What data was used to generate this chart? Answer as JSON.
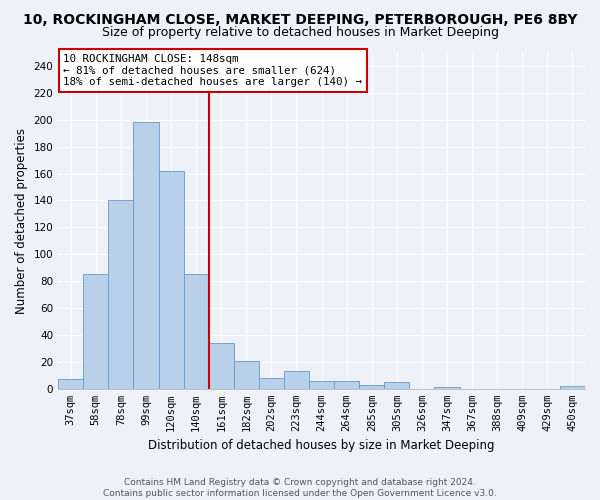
{
  "title": "10, ROCKINGHAM CLOSE, MARKET DEEPING, PETERBOROUGH, PE6 8BY",
  "subtitle": "Size of property relative to detached houses in Market Deeping",
  "xlabel": "Distribution of detached houses by size in Market Deeping",
  "ylabel": "Number of detached properties",
  "categories": [
    "37sqm",
    "58sqm",
    "78sqm",
    "99sqm",
    "120sqm",
    "140sqm",
    "161sqm",
    "182sqm",
    "202sqm",
    "223sqm",
    "244sqm",
    "264sqm",
    "285sqm",
    "305sqm",
    "326sqm",
    "347sqm",
    "367sqm",
    "388sqm",
    "409sqm",
    "429sqm",
    "450sqm"
  ],
  "values": [
    7,
    85,
    140,
    198,
    162,
    85,
    34,
    21,
    8,
    13,
    6,
    6,
    3,
    5,
    0,
    1,
    0,
    0,
    0,
    0,
    2
  ],
  "bar_color": "#b8d0ea",
  "bar_edge_color": "#6699cc",
  "vline_x": 5.5,
  "vline_color": "#cc0000",
  "annotation_text": "10 ROCKINGHAM CLOSE: 148sqm\n← 81% of detached houses are smaller (624)\n18% of semi-detached houses are larger (140) →",
  "annotation_box_color": "#ffffff",
  "annotation_box_edge": "#cc0000",
  "ylim": [
    0,
    250
  ],
  "yticks": [
    0,
    20,
    40,
    60,
    80,
    100,
    120,
    140,
    160,
    180,
    200,
    220,
    240
  ],
  "footer_line1": "Contains HM Land Registry data © Crown copyright and database right 2024.",
  "footer_line2": "Contains public sector information licensed under the Open Government Licence v3.0.",
  "bg_color": "#eef2f8",
  "grid_color": "#ffffff",
  "title_fontsize": 10,
  "subtitle_fontsize": 9,
  "axis_label_fontsize": 8.5,
  "tick_fontsize": 7.5,
  "footer_fontsize": 6.5
}
